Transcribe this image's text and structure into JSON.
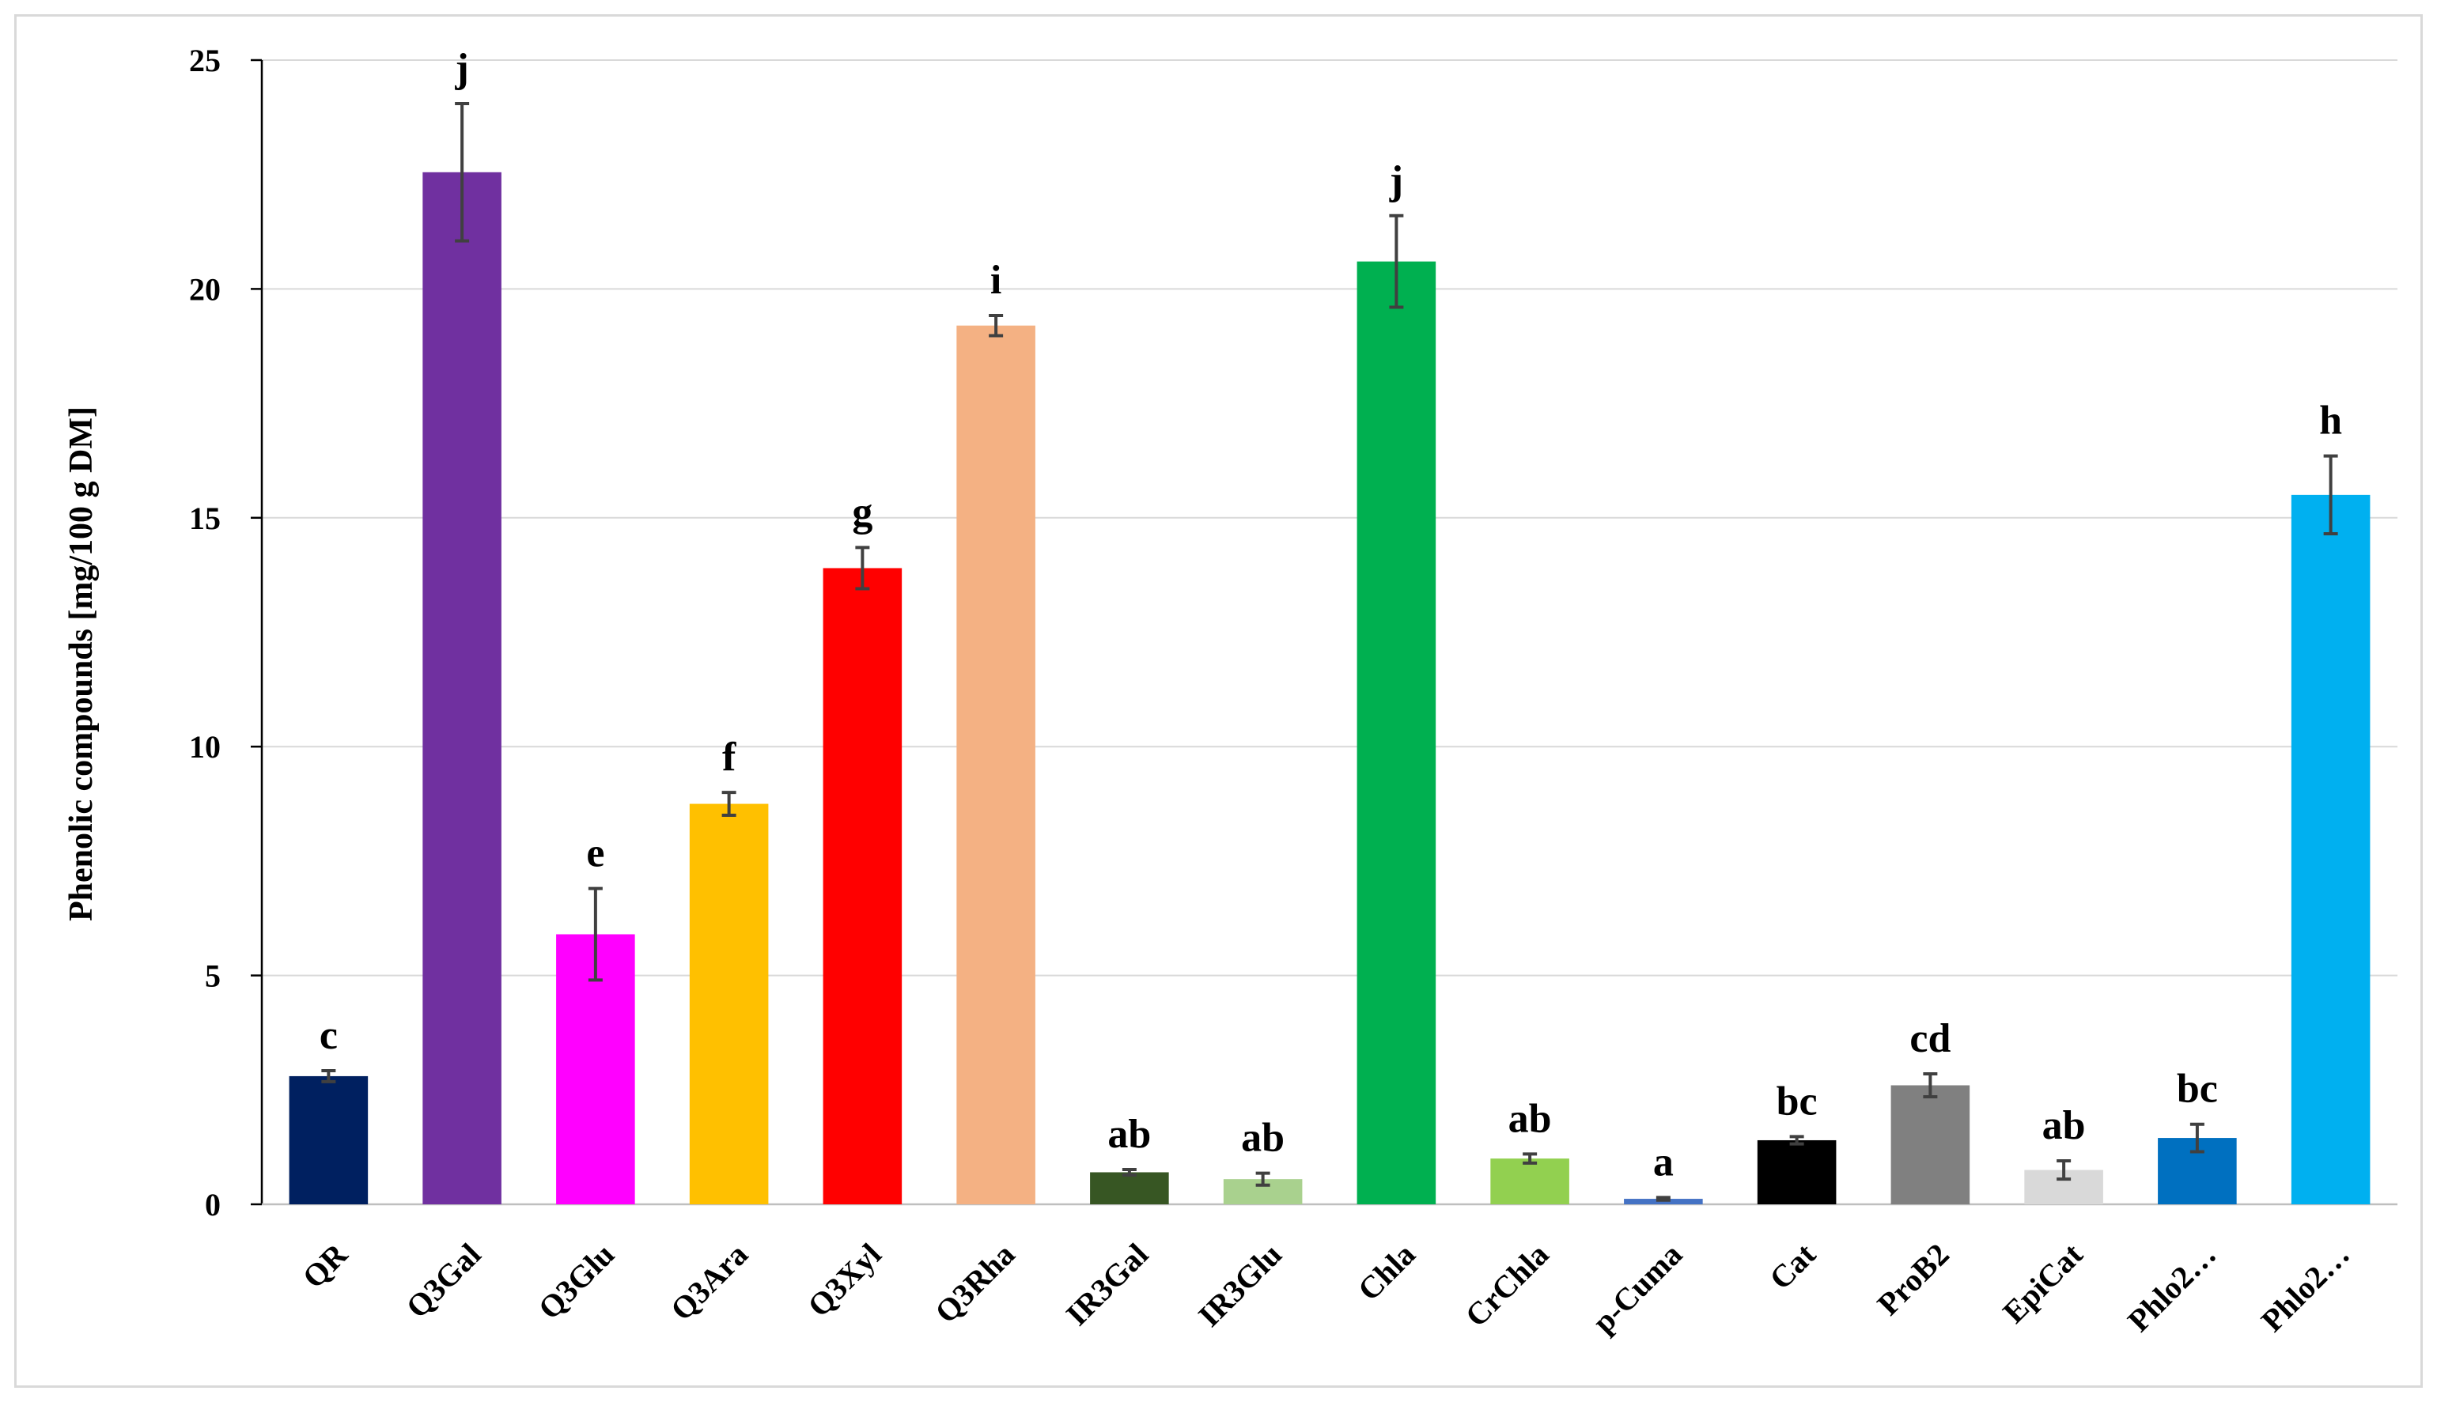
{
  "chart_data": {
    "type": "bar",
    "title": "",
    "xlabel": "",
    "ylabel": "Phenolic compounds [mg/100 g DM]",
    "ylim": [
      0,
      25
    ],
    "yticks": [
      0,
      5,
      10,
      15,
      20,
      25
    ],
    "grid": true,
    "legend": "none",
    "categories": [
      "QR",
      "Q3Gal",
      "Q3Glu",
      "Q3Ara",
      "Q3Xyl",
      "Q3Rha",
      "IR3Gal",
      "IR3Glu",
      "Chla",
      "CrChla",
      "p-Cuma",
      "Cat",
      "ProB2",
      "EpiCat",
      "Phlo2…",
      "Phlo2…"
    ],
    "values": [
      2.8,
      22.55,
      5.9,
      8.75,
      13.9,
      19.2,
      0.7,
      0.55,
      20.6,
      1.0,
      0.12,
      1.4,
      2.6,
      0.75,
      1.45,
      15.5
    ],
    "errors": [
      0.12,
      1.5,
      1.0,
      0.25,
      0.45,
      0.22,
      0.06,
      0.13,
      1.0,
      0.1,
      0.03,
      0.08,
      0.25,
      0.2,
      0.3,
      0.85
    ],
    "significance": [
      "c",
      "j",
      "e",
      "f",
      "g",
      "i",
      "ab",
      "ab",
      "j",
      "ab",
      "a",
      "bc",
      "cd",
      "ab",
      "bc",
      "h"
    ],
    "colors": [
      "#002060",
      "#7030a0",
      "#ff00ff",
      "#ffc000",
      "#ff0000",
      "#f4b183",
      "#375623",
      "#a9d18e",
      "#00b050",
      "#92d050",
      "#4472c4",
      "#000000",
      "#808080",
      "#d9d9d9",
      "#0070c0",
      "#00b0f0"
    ]
  }
}
